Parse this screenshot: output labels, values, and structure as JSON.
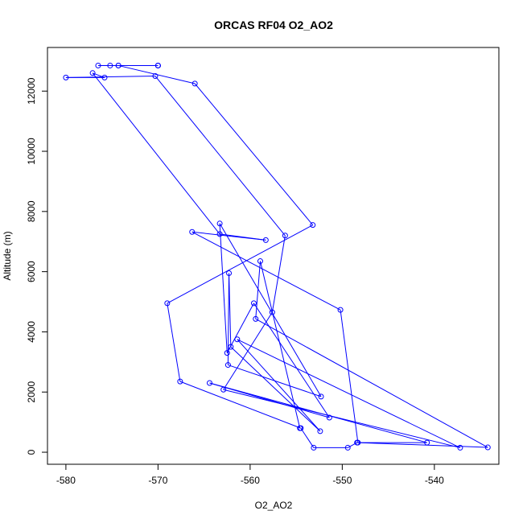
{
  "chart_data": {
    "type": "line",
    "title": "ORCAS RF04 O2_AO2",
    "xlabel": "O2_AO2",
    "ylabel": "Altitude (m)",
    "xlim": [
      -582,
      -533
    ],
    "ylim": [
      -400,
      13450
    ],
    "xticks": [
      -580,
      -570,
      -560,
      -550,
      -540
    ],
    "yticks": [
      0,
      2000,
      4000,
      6000,
      8000,
      10000,
      12000
    ],
    "grid": false,
    "line_color": "#0000ff",
    "marker": "open-circle",
    "series": [
      {
        "points": [
          [
            -570,
            12850
          ],
          [
            -574.3,
            12850
          ],
          [
            -576.5,
            12850
          ],
          [
            -575.2,
            12850
          ],
          [
            -570,
            12850
          ],
          [
            -570,
            12850
          ],
          [
            -574.3,
            12850
          ],
          [
            -566,
            12250
          ],
          [
            -553.2,
            7550
          ],
          [
            -569,
            4950
          ],
          [
            -567.6,
            2350
          ],
          [
            -554.5,
            800
          ],
          [
            -553.1,
            150
          ],
          [
            -549.4,
            150
          ],
          [
            -548.4,
            320
          ],
          [
            -540.8,
            320
          ],
          [
            -564.4,
            2300
          ],
          [
            -551.4,
            1150
          ],
          [
            -559.6,
            4950
          ],
          [
            -562.5,
            3300
          ],
          [
            -563.3,
            7600
          ],
          [
            -552.3,
            1850
          ],
          [
            -562.4,
            2900
          ],
          [
            -562.3,
            5950
          ],
          [
            -562.1,
            3500
          ],
          [
            -552.4,
            700
          ],
          [
            -561.4,
            3750
          ],
          [
            -537.2,
            150
          ],
          [
            -562.9,
            2080
          ],
          [
            -557.6,
            4650
          ],
          [
            -556.2,
            7200
          ],
          [
            -570.3,
            12500
          ],
          [
            -580,
            12450
          ],
          [
            -575.8,
            12450
          ],
          [
            -577.1,
            12600
          ],
          [
            -563.3,
            7250
          ],
          [
            -558.3,
            7050
          ],
          [
            -566.3,
            7320
          ],
          [
            -550.2,
            4730
          ],
          [
            -548.3,
            320
          ],
          [
            -534.2,
            160
          ],
          [
            -559.4,
            4430
          ],
          [
            -558.9,
            6350
          ],
          [
            -554.6,
            800
          ]
        ]
      }
    ]
  }
}
